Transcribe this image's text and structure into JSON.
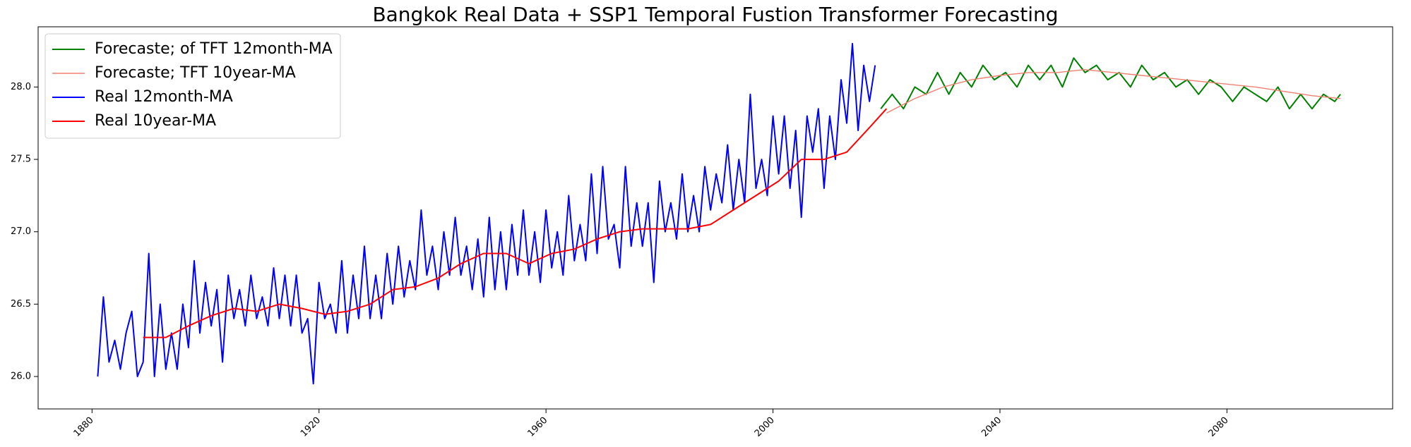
{
  "chart_data": {
    "type": "line",
    "title": "Bangkok Real Data + SSP1 Temporal Fustion Transformer Forecasting",
    "xlim": [
      1870.5,
      2109.2
    ],
    "ylim": [
      25.776,
      28.416
    ],
    "xticks": [
      1880,
      1920,
      1960,
      2000,
      2040,
      2080
    ],
    "yticks": [
      {
        "value": 26,
        "label": "26.0"
      },
      {
        "value": 26.5,
        "label": "26.5"
      },
      {
        "value": 27,
        "label": "27.0"
      },
      {
        "value": 27.5,
        "label": "27.5"
      },
      {
        "value": 28,
        "label": "28.0"
      }
    ],
    "legend": "upper left",
    "series": [
      {
        "name": "Forecaste; of TFT 12month-MA",
        "color": "#008000",
        "width": 2,
        "x": [
          2019,
          2021,
          2023,
          2025,
          2027,
          2029,
          2031,
          2033,
          2035,
          2037,
          2039,
          2041,
          2043,
          2045,
          2047,
          2049,
          2051,
          2053,
          2055,
          2057,
          2059,
          2061,
          2063,
          2065,
          2067,
          2069,
          2071,
          2073,
          2075,
          2077,
          2079,
          2081,
          2083,
          2085,
          2087,
          2089,
          2091,
          2093,
          2095,
          2097,
          2099,
          2100
        ],
        "values": [
          27.85,
          27.95,
          27.85,
          28.0,
          27.95,
          28.1,
          27.95,
          28.1,
          28.0,
          28.15,
          28.05,
          28.1,
          28.0,
          28.15,
          28.05,
          28.15,
          28.0,
          28.2,
          28.1,
          28.15,
          28.05,
          28.1,
          28.0,
          28.15,
          28.05,
          28.1,
          28.0,
          28.05,
          27.95,
          28.05,
          28.0,
          27.9,
          28.0,
          27.95,
          27.9,
          28.0,
          27.85,
          27.95,
          27.85,
          27.95,
          27.9,
          27.95
        ]
      },
      {
        "name": "Forecaste; TFT 10year-MA",
        "color": "#f08070",
        "width": 1.4,
        "x": [
          2020,
          2025,
          2030,
          2035,
          2040,
          2045,
          2050,
          2055,
          2060,
          2065,
          2070,
          2075,
          2080,
          2085,
          2090,
          2095,
          2100
        ],
        "values": [
          27.82,
          27.92,
          28.0,
          28.05,
          28.08,
          28.1,
          28.1,
          28.12,
          28.1,
          28.08,
          28.06,
          28.04,
          28.02,
          28.0,
          27.97,
          27.94,
          27.92
        ]
      },
      {
        "name": "Real 12month-MA",
        "color": "#0000ff",
        "width": 2,
        "x": [
          1881,
          1882,
          1883,
          1884,
          1885,
          1886,
          1887,
          1888,
          1889,
          1890,
          1891,
          1892,
          1893,
          1894,
          1895,
          1896,
          1897,
          1898,
          1899,
          1900,
          1901,
          1902,
          1903,
          1904,
          1905,
          1906,
          1907,
          1908,
          1909,
          1910,
          1911,
          1912,
          1913,
          1914,
          1915,
          1916,
          1917,
          1918,
          1919,
          1920,
          1921,
          1922,
          1923,
          1924,
          1925,
          1926,
          1927,
          1928,
          1929,
          1930,
          1931,
          1932,
          1933,
          1934,
          1935,
          1936,
          1937,
          1938,
          1939,
          1940,
          1941,
          1942,
          1943,
          1944,
          1945,
          1946,
          1947,
          1948,
          1949,
          1950,
          1951,
          1952,
          1953,
          1954,
          1955,
          1956,
          1957,
          1958,
          1959,
          1960,
          1961,
          1962,
          1963,
          1964,
          1965,
          1966,
          1967,
          1968,
          1969,
          1970,
          1971,
          1972,
          1973,
          1974,
          1975,
          1976,
          1977,
          1978,
          1979,
          1980,
          1981,
          1982,
          1983,
          1984,
          1985,
          1986,
          1987,
          1988,
          1989,
          1990,
          1991,
          1992,
          1993,
          1994,
          1995,
          1996,
          1997,
          1998,
          1999,
          2000,
          2001,
          2002,
          2003,
          2004,
          2005,
          2006,
          2007,
          2008,
          2009,
          2010,
          2011,
          2012,
          2013,
          2014,
          2015,
          2016,
          2017,
          2018
        ],
        "values": [
          26.0,
          26.55,
          26.1,
          26.25,
          26.05,
          26.3,
          26.45,
          26.0,
          26.1,
          26.85,
          26.0,
          26.5,
          26.05,
          26.3,
          26.05,
          26.5,
          26.2,
          26.8,
          26.3,
          26.65,
          26.35,
          26.6,
          26.1,
          26.7,
          26.4,
          26.6,
          26.35,
          26.7,
          26.4,
          26.55,
          26.35,
          26.75,
          26.4,
          26.7,
          26.35,
          26.7,
          26.3,
          26.4,
          25.95,
          26.65,
          26.4,
          26.5,
          26.3,
          26.8,
          26.3,
          26.7,
          26.4,
          26.9,
          26.4,
          26.7,
          26.4,
          26.85,
          26.5,
          26.9,
          26.55,
          26.8,
          26.6,
          27.15,
          26.7,
          26.9,
          26.6,
          27.0,
          26.7,
          27.1,
          26.7,
          26.9,
          26.6,
          26.95,
          26.55,
          27.1,
          26.6,
          27.0,
          26.6,
          27.05,
          26.7,
          27.15,
          26.7,
          27.0,
          26.65,
          27.15,
          26.75,
          27.0,
          26.7,
          27.25,
          26.8,
          27.05,
          26.8,
          27.4,
          26.85,
          27.45,
          26.95,
          27.05,
          26.75,
          27.45,
          26.9,
          27.2,
          26.9,
          27.2,
          26.65,
          27.35,
          27.0,
          27.2,
          26.95,
          27.4,
          27.0,
          27.25,
          27.0,
          27.45,
          27.15,
          27.4,
          27.2,
          27.6,
          27.15,
          27.5,
          27.2,
          27.95,
          27.3,
          27.5,
          27.25,
          27.8,
          27.4,
          27.8,
          27.3,
          27.7,
          27.1,
          27.8,
          27.55,
          27.85,
          27.3,
          27.8,
          27.5,
          28.05,
          27.75,
          28.3,
          27.7,
          28.15,
          27.9,
          28.15
        ]
      },
      {
        "name": "Real 10year-MA",
        "color": "#ff0000",
        "width": 2,
        "x": [
          1889,
          1893,
          1897,
          1901,
          1905,
          1909,
          1913,
          1917,
          1921,
          1925,
          1929,
          1933,
          1937,
          1941,
          1945,
          1949,
          1953,
          1957,
          1961,
          1965,
          1969,
          1973,
          1977,
          1981,
          1985,
          1989,
          1993,
          1997,
          2001,
          2005,
          2009,
          2013,
          2017,
          2020
        ],
        "values": [
          26.27,
          26.27,
          26.35,
          26.42,
          26.47,
          26.45,
          26.5,
          26.47,
          26.43,
          26.45,
          26.5,
          26.6,
          26.62,
          26.68,
          26.78,
          26.85,
          26.85,
          26.78,
          26.85,
          26.88,
          26.95,
          27.0,
          27.02,
          27.02,
          27.02,
          27.05,
          27.15,
          27.25,
          27.35,
          27.5,
          27.5,
          27.55,
          27.72,
          27.85
        ]
      }
    ]
  }
}
